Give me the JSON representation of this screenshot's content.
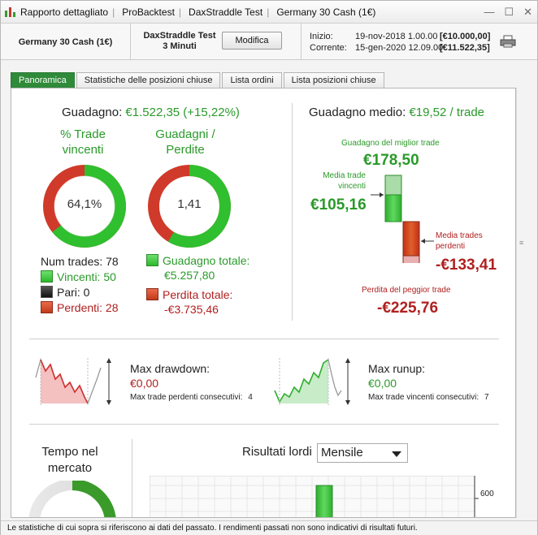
{
  "titlebar": {
    "parts": [
      "Rapporto dettagliato",
      "ProBacktest",
      "DaxStraddle Test",
      "Germany 30 Cash (1€)"
    ]
  },
  "header": {
    "instrument": "Germany 30 Cash (1€)",
    "strategy_name": "DaxStraddle Test",
    "timeframe": "3 Minuti",
    "modify_label": "Modifica",
    "start_label": "Inizio:",
    "start_date": "19-nov-2018 1.00.00",
    "start_value": "[€10.000,00]",
    "current_label": "Corrente:",
    "current_date": "15-gen-2020 12.09.00",
    "current_value": "[€11.522,35]"
  },
  "tabs": [
    {
      "label": "Panoramica",
      "active": true
    },
    {
      "label": "Statistiche delle posizioni chiuse",
      "active": false
    },
    {
      "label": "Lista ordini",
      "active": false
    },
    {
      "label": "Lista posizioni chiuse",
      "active": false
    }
  ],
  "overview": {
    "gain_label": "Guadagno:",
    "gain_value": "€1.522,35 (+15,22%)",
    "pct_title_1": "% Trade",
    "pct_title_2": "vincenti",
    "pct_value": "64,1%",
    "pct_fraction": 0.641,
    "ratio_title_1": "Guadagni /",
    "ratio_title_2": "Perdite",
    "ratio_value": "1,41",
    "ratio_fraction": 0.585,
    "num_trades": "Num trades: 78",
    "winners": "Vincenti: 50",
    "even": "Pari: 0",
    "losers": "Perdenti: 28",
    "total_gain_label": "Guadagno totale:",
    "total_gain_value": "€5.257,80",
    "total_loss_label": "Perdita totale:",
    "total_loss_value": "-€3.735,46"
  },
  "avg": {
    "label": "Guadagno medio:",
    "value": "€19,52 / trade",
    "best_label": "Guadagno del miglior trade",
    "best_value": "€178,50",
    "avg_win_label_1": "Media trade",
    "avg_win_label_2": "vincenti",
    "avg_win_value": "€105,16",
    "avg_loss_label_1": "Media trades",
    "avg_loss_label_2": "perdenti",
    "avg_loss_value": "-€133,41",
    "worst_label": "Perdita del peggior trade",
    "worst_value": "-€225,76"
  },
  "drawdown": {
    "label": "Max drawdown:",
    "value": "€0,00",
    "consec_label": "Max trade perdenti consecutivi:",
    "consec_value": "4"
  },
  "runup": {
    "label": "Max runup:",
    "value": "€0,00",
    "consec_label": "Max trade vincenti consecutivi:",
    "consec_value": "7"
  },
  "market_time": {
    "title_1": "Tempo nel",
    "title_2": "mercato"
  },
  "gross": {
    "label": "Risultati lordi",
    "period": "Mensile",
    "axis_tick": "600"
  },
  "footer": {
    "text": "Le statistiche di cui sopra si riferiscono ai dati del passato. I rendimenti passati non sono indicativi di risultati futuri."
  },
  "colors": {
    "green": "#2a9a2a",
    "red": "#b02020",
    "tab_active": "#2f8a3a"
  }
}
